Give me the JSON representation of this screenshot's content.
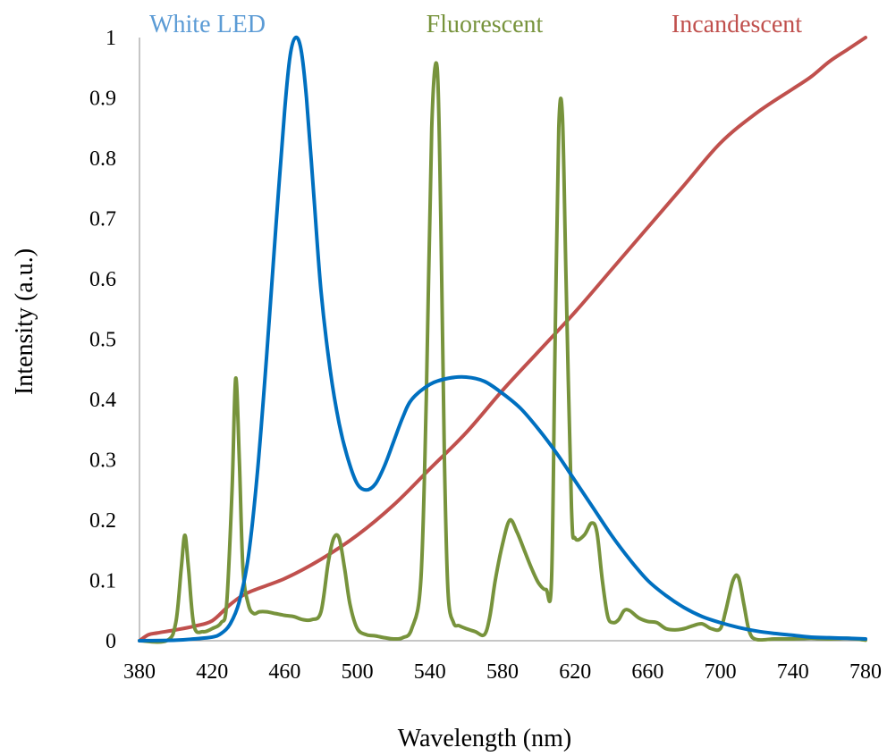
{
  "chart_data": {
    "type": "line",
    "xlabel": "Wavelength (nm)",
    "ylabel": "Intensity (a.u.)",
    "xlim": [
      380,
      780
    ],
    "ylim": [
      0,
      1
    ],
    "x_ticks": [
      "380",
      "420",
      "460",
      "500",
      "540",
      "580",
      "620",
      "660",
      "700",
      "740",
      "780"
    ],
    "y_ticks": [
      "0",
      "0.1",
      "0.2",
      "0.3",
      "0.4",
      "0.5",
      "0.6",
      "0.7",
      "0.8",
      "0.9",
      "1"
    ],
    "grid": false,
    "legend_position": "top",
    "series": [
      {
        "name": "White LED",
        "color": "#0070C0",
        "label_color": "#5B9BD5",
        "x": [
          380,
          400,
          410,
          420,
          425,
          430,
          435,
          440,
          445,
          450,
          455,
          460,
          463,
          466,
          469,
          472,
          476,
          480,
          485,
          490,
          495,
          500,
          505,
          510,
          515,
          520,
          525,
          530,
          540,
          550,
          560,
          570,
          580,
          590,
          600,
          610,
          620,
          630,
          640,
          650,
          660,
          670,
          680,
          690,
          700,
          710,
          720,
          730,
          740,
          750,
          760,
          770,
          780
        ],
        "y": [
          0.0,
          0.001,
          0.003,
          0.006,
          0.012,
          0.028,
          0.065,
          0.14,
          0.28,
          0.47,
          0.68,
          0.88,
          0.97,
          1.0,
          0.98,
          0.9,
          0.74,
          0.58,
          0.45,
          0.36,
          0.3,
          0.26,
          0.25,
          0.26,
          0.29,
          0.33,
          0.37,
          0.4,
          0.425,
          0.435,
          0.437,
          0.43,
          0.41,
          0.385,
          0.35,
          0.31,
          0.265,
          0.22,
          0.175,
          0.135,
          0.1,
          0.075,
          0.055,
          0.04,
          0.03,
          0.022,
          0.016,
          0.012,
          0.009,
          0.006,
          0.005,
          0.004,
          0.003
        ]
      },
      {
        "name": "Fluorescent",
        "color": "#77933C",
        "label_color": "#77933C",
        "x": [
          380,
          395,
          400,
          403,
          405,
          407,
          410,
          415,
          420,
          425,
          428,
          431,
          433,
          435,
          437,
          440,
          443,
          446,
          450,
          455,
          460,
          465,
          470,
          475,
          480,
          484,
          487,
          490,
          493,
          496,
          500,
          505,
          510,
          515,
          520,
          525,
          530,
          535,
          538,
          541,
          544,
          546,
          548,
          550,
          553,
          556,
          560,
          565,
          570,
          573,
          576,
          580,
          584,
          588,
          592,
          596,
          600,
          604,
          607,
          609,
          611,
          613,
          615,
          618,
          620,
          625,
          629,
          632,
          635,
          638,
          641,
          644,
          647,
          650,
          655,
          660,
          665,
          670,
          675,
          680,
          685,
          690,
          695,
          700,
          703,
          707,
          710,
          713,
          716,
          720,
          730,
          740,
          750,
          760,
          770,
          780
        ],
        "y": [
          0.0,
          0.0,
          0.03,
          0.12,
          0.175,
          0.12,
          0.025,
          0.015,
          0.02,
          0.03,
          0.06,
          0.25,
          0.435,
          0.3,
          0.12,
          0.06,
          0.045,
          0.048,
          0.048,
          0.045,
          0.042,
          0.04,
          0.035,
          0.035,
          0.048,
          0.13,
          0.17,
          0.17,
          0.12,
          0.06,
          0.02,
          0.01,
          0.008,
          0.005,
          0.003,
          0.005,
          0.02,
          0.1,
          0.4,
          0.85,
          0.95,
          0.7,
          0.3,
          0.08,
          0.03,
          0.025,
          0.02,
          0.015,
          0.01,
          0.04,
          0.1,
          0.16,
          0.2,
          0.18,
          0.15,
          0.12,
          0.095,
          0.085,
          0.1,
          0.5,
          0.85,
          0.87,
          0.6,
          0.22,
          0.17,
          0.175,
          0.195,
          0.18,
          0.1,
          0.04,
          0.03,
          0.035,
          0.05,
          0.05,
          0.038,
          0.032,
          0.03,
          0.02,
          0.018,
          0.02,
          0.025,
          0.028,
          0.02,
          0.02,
          0.05,
          0.1,
          0.105,
          0.06,
          0.015,
          0.002,
          0.003,
          0.003,
          0.004,
          0.003,
          0.004,
          0.001
        ]
      },
      {
        "name": "Incandescent",
        "color": "#C0504D",
        "label_color": "#C0504D",
        "x": [
          380,
          385,
          390,
          400,
          410,
          420,
          430,
          440,
          460,
          480,
          500,
          520,
          540,
          560,
          580,
          600,
          620,
          640,
          660,
          680,
          700,
          720,
          740,
          750,
          760,
          770,
          780
        ],
        "y": [
          0.0,
          0.01,
          0.013,
          0.018,
          0.024,
          0.033,
          0.06,
          0.08,
          0.103,
          0.135,
          0.175,
          0.225,
          0.285,
          0.345,
          0.415,
          0.48,
          0.545,
          0.615,
          0.685,
          0.755,
          0.825,
          0.875,
          0.915,
          0.935,
          0.96,
          0.98,
          1.0
        ]
      }
    ]
  }
}
